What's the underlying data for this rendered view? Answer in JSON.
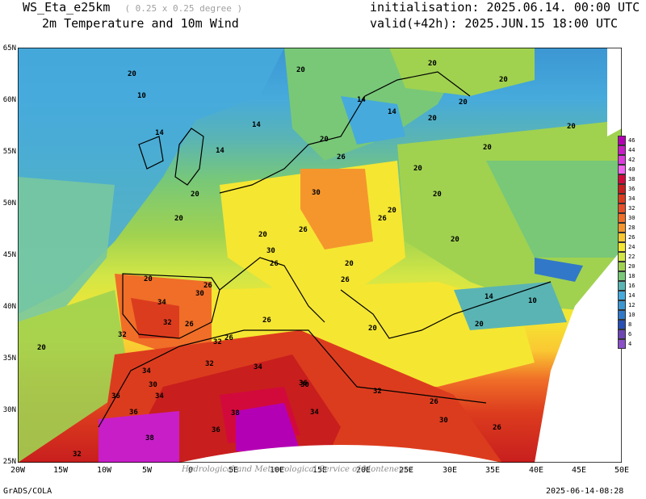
{
  "header": {
    "model": "WS_Eta_e25km",
    "resolution": "( 0.25 x 0.25 degree )",
    "field": "2m Temperature and 10m Wind",
    "init": "initialisation: 2025.06.14. 00:00 UTC",
    "valid": "valid(+42h): 2025.JUN.15 18:00 UTC"
  },
  "footer": {
    "left": "GrADS/COLA",
    "right": "2025-06-14-08:28",
    "watermark": "Hydrological and Meteorological Service of Montenegro"
  },
  "lat_labels": [
    "65N",
    "60N",
    "55N",
    "50N",
    "45N",
    "40N",
    "35N",
    "30N",
    "25N"
  ],
  "lon_labels": [
    "20W",
    "15W",
    "10W",
    "5W",
    "0",
    "5E",
    "10E",
    "15E",
    "20E",
    "25E",
    "30E",
    "35E",
    "40E",
    "45E",
    "50E"
  ],
  "colorbar": {
    "labels": [
      "46",
      "44",
      "42",
      "40",
      "38",
      "36",
      "34",
      "32",
      "30",
      "28",
      "26",
      "24",
      "22",
      "20",
      "18",
      "16",
      "14",
      "12",
      "10",
      "8",
      "6",
      "4"
    ],
    "colors": [
      "#b400b4",
      "#c81ec8",
      "#dc3cdc",
      "#f064f0",
      "#d20a3c",
      "#c81e1e",
      "#dc3c1e",
      "#e65028",
      "#f06e28",
      "#f5962d",
      "#fac832",
      "#f5e632",
      "#d2e646",
      "#a0d250",
      "#78c878",
      "#5ab4b4",
      "#46aadc",
      "#3c96d2",
      "#3278c8",
      "#2850b4",
      "#6e46b4",
      "#8c50c8"
    ]
  },
  "contour_labels": [
    "10",
    "20",
    "14",
    "14",
    "14",
    "14",
    "20",
    "20",
    "20",
    "20",
    "20",
    "14",
    "20",
    "20",
    "26",
    "20",
    "20",
    "30",
    "20",
    "20",
    "20",
    "26",
    "20",
    "20",
    "26",
    "20",
    "30",
    "26",
    "20",
    "26",
    "30",
    "34",
    "32",
    "26",
    "32",
    "26",
    "26",
    "26",
    "32",
    "34",
    "32",
    "34",
    "36",
    "30",
    "36",
    "34",
    "36",
    "32",
    "30",
    "38",
    "36",
    "34",
    "38",
    "32",
    "26",
    "30",
    "26",
    "20",
    "20",
    "14",
    "10",
    "20",
    "20"
  ]
}
